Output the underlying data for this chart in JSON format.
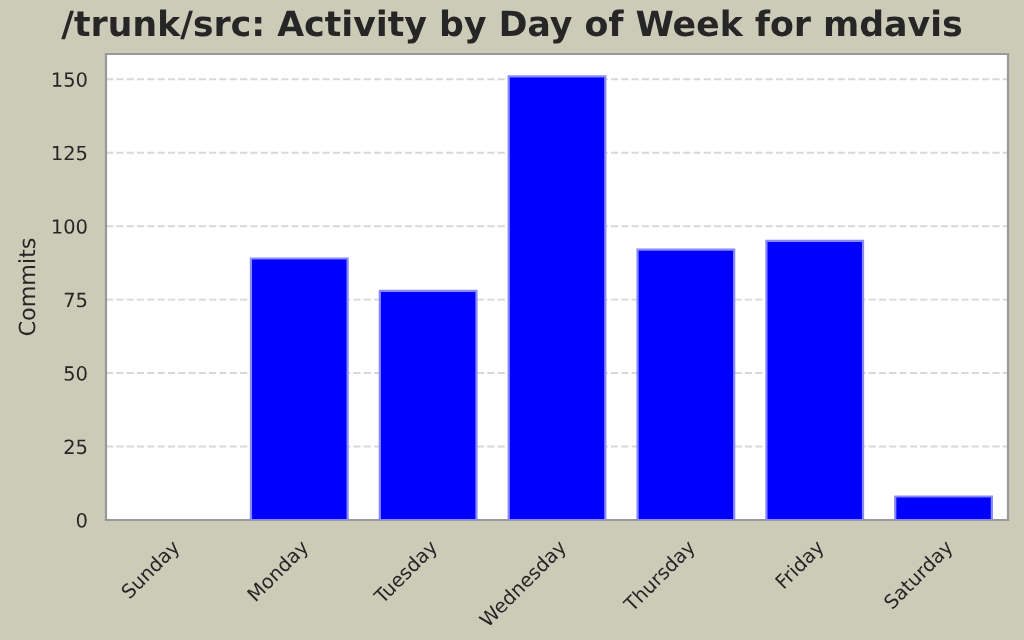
{
  "chart_data": {
    "type": "bar",
    "title": "/trunk/src: Activity by Day of Week for mdavis",
    "ylabel": "Commits",
    "categories": [
      "Sunday",
      "Monday",
      "Tuesday",
      "Wednesday",
      "Thursday",
      "Friday",
      "Saturday"
    ],
    "values": [
      0,
      89,
      78,
      151,
      92,
      95,
      8
    ],
    "color": "#0000ff",
    "ylim": [
      0,
      158.6
    ],
    "yticks": [
      0,
      25,
      50,
      75,
      100,
      125,
      150
    ],
    "grid": "y",
    "legend": false
  }
}
